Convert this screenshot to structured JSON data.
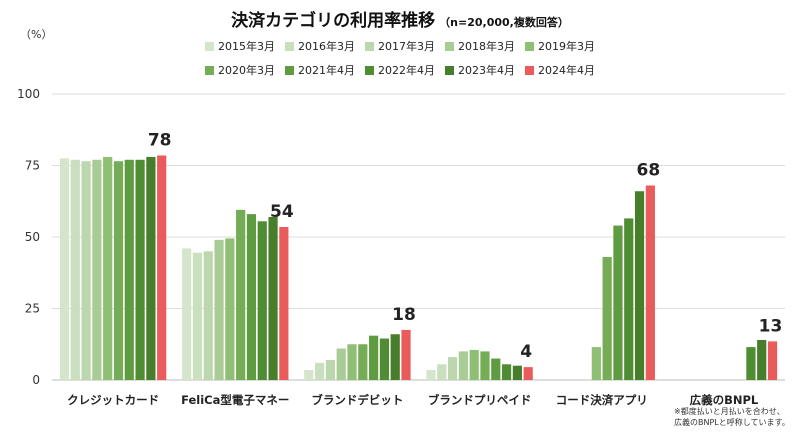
{
  "title": "決済カテゴリの利用率推移",
  "subtitle": "（n=20,000,複数回答）",
  "unit_label": "（%）",
  "note_line1": "※都度払いと月払いを合わせ、",
  "note_line2": "広義のBNPLと呼称しています。",
  "legend_rows": [
    [
      "2015年3月",
      "2016年3月",
      "2017年3月",
      "2018年3月",
      "2019年3月"
    ],
    [
      "2020年3月",
      "2021年4月",
      "2022年4月",
      "2023年4月",
      "2024年4月"
    ]
  ],
  "colors": [
    "#d5e5cb",
    "#cadfbd",
    "#bcd7ad",
    "#a9cc96",
    "#8fbf73",
    "#74ad55",
    "#5f9c41",
    "#4f8d33",
    "#467e2c",
    "#ea5b5b"
  ],
  "chart_data": {
    "type": "bar",
    "title": "決済カテゴリの利用率推移",
    "ylabel": "（%）",
    "ylim": [
      0,
      100
    ],
    "yticks": [
      0,
      25,
      50,
      75,
      100
    ],
    "grid": true,
    "legend_position": "top",
    "categories": [
      "クレジットカード",
      "FeliCa型電子マネー",
      "ブランドデビット",
      "ブランドプリペイド",
      "コード決済アプリ",
      "広義のBNPL"
    ],
    "series": [
      {
        "name": "2015年3月",
        "values": [
          77.5,
          46,
          3.5,
          3.5,
          null,
          null
        ]
      },
      {
        "name": "2016年3月",
        "values": [
          77,
          44.5,
          6,
          5.5,
          null,
          null
        ]
      },
      {
        "name": "2017年3月",
        "values": [
          76.5,
          45,
          7,
          8,
          null,
          null
        ]
      },
      {
        "name": "2018年3月",
        "values": [
          77,
          49,
          11,
          10,
          null,
          null
        ]
      },
      {
        "name": "2019年3月",
        "values": [
          78,
          49.5,
          12.5,
          10.5,
          11.5,
          null
        ]
      },
      {
        "name": "2020年3月",
        "values": [
          76.5,
          59.5,
          12.5,
          10,
          43,
          null
        ]
      },
      {
        "name": "2021年4月",
        "values": [
          77,
          58,
          15.5,
          7.5,
          54,
          null
        ]
      },
      {
        "name": "2022年4月",
        "values": [
          77,
          55.5,
          14.5,
          5.5,
          56.5,
          11.5
        ]
      },
      {
        "name": "2023年4月",
        "values": [
          78,
          57,
          16,
          5,
          66,
          14
        ]
      },
      {
        "name": "2024年4月",
        "values": [
          78.5,
          53.5,
          17.5,
          4.5,
          68,
          13.5
        ]
      }
    ],
    "data_labels": [
      "78",
      "54",
      "18",
      "4",
      "68",
      "13"
    ]
  }
}
